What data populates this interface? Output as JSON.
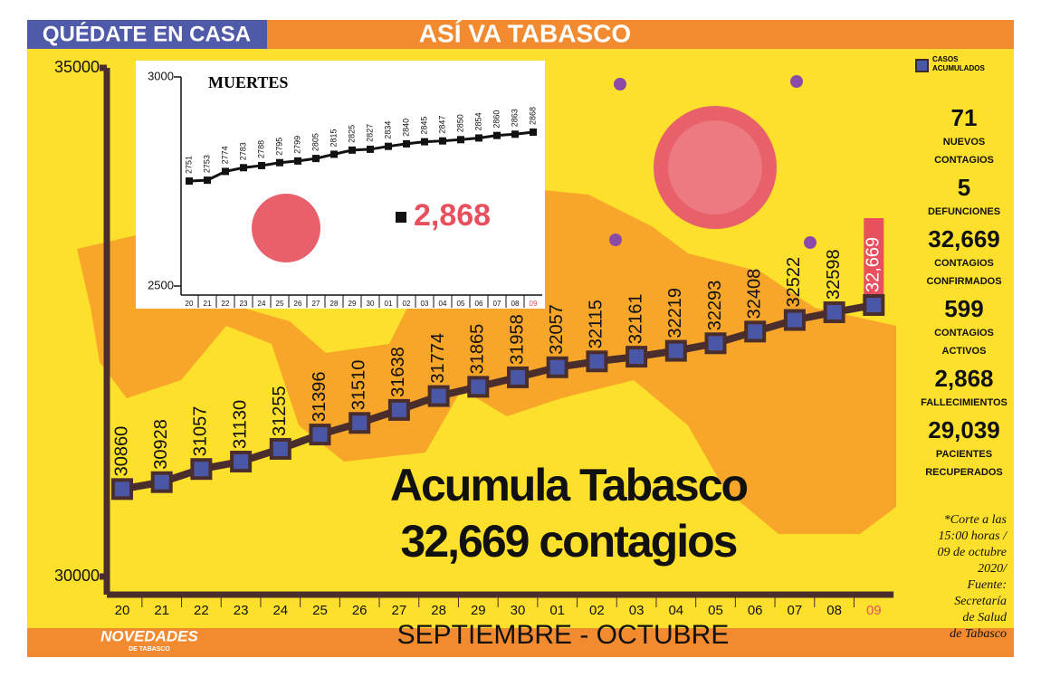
{
  "header": {
    "left": "QUÉDATE EN CASA",
    "center": "ASÍ VA TABASCO"
  },
  "chart_data": [
    {
      "type": "line",
      "xlabel": "SEPTIEMBRE - OCTUBRE",
      "categories": [
        "20",
        "21",
        "22",
        "23",
        "24",
        "25",
        "26",
        "27",
        "28",
        "29",
        "30",
        "01",
        "02",
        "03",
        "04",
        "05",
        "06",
        "07",
        "08",
        "09"
      ],
      "series": [
        {
          "name": "CASOS ACUMULADOS",
          "color": "#4a56a6",
          "values": [
            30860,
            30928,
            31057,
            31130,
            31255,
            31396,
            31510,
            31638,
            31774,
            31865,
            31958,
            32057,
            32115,
            32161,
            32219,
            32293,
            32408,
            32522,
            32598,
            32669
          ],
          "value_labels": [
            "30860",
            "30928",
            "31057",
            "31130",
            "31255",
            "31396",
            "31510",
            "31638",
            "31774",
            "31865",
            "31958",
            "32057",
            "32115",
            "32161",
            "32219",
            "32293",
            "32408",
            "32522",
            "32598",
            "32,669"
          ]
        }
      ],
      "ylim": [
        30000,
        35000
      ],
      "yticks": [
        30000,
        35000
      ]
    },
    {
      "type": "line",
      "title": "MUERTES",
      "callout": "2,868",
      "categories": [
        "20",
        "21",
        "22",
        "23",
        "24",
        "25",
        "26",
        "27",
        "28",
        "29",
        "30",
        "01",
        "02",
        "03",
        "04",
        "05",
        "06",
        "07",
        "08",
        "09"
      ],
      "series": [
        {
          "color": "#111111",
          "values": [
            2751,
            2753,
            2774,
            2783,
            2788,
            2795,
            2799,
            2805,
            2815,
            2825,
            2827,
            2834,
            2840,
            2845,
            2847,
            2850,
            2854,
            2860,
            2863,
            2868
          ]
        }
      ],
      "ylim": [
        2500,
        3000
      ],
      "yticks": [
        2500,
        3000
      ]
    }
  ],
  "headline": [
    "Acumula Tabasco",
    "32,669 contagios"
  ],
  "stats": [
    {
      "value": "71",
      "label": [
        "NUEVOS",
        "CONTAGIOS"
      ]
    },
    {
      "value": "5",
      "label": [
        "DEFUNCIONES"
      ]
    },
    {
      "value": "32,669",
      "label": [
        "CONTAGIOS",
        "CONFIRMADOS"
      ]
    },
    {
      "value": "599",
      "label": [
        "CONTAGIOS",
        "ACTIVOS"
      ]
    },
    {
      "value": "2,868",
      "label": [
        "FALLECIMIENTOS"
      ]
    },
    {
      "value": "29,039",
      "label": [
        "PACIENTES",
        "RECUPERADOS"
      ]
    }
  ],
  "note": [
    "*Corte a las",
    "15:00 horas /",
    "09 de octubre",
    "2020/",
    "Fuente:",
    "Secretaría",
    "de Salud",
    "de Tabasco"
  ],
  "brand": {
    "name": "NOVEDADES",
    "sub": "DE TABASCO"
  }
}
